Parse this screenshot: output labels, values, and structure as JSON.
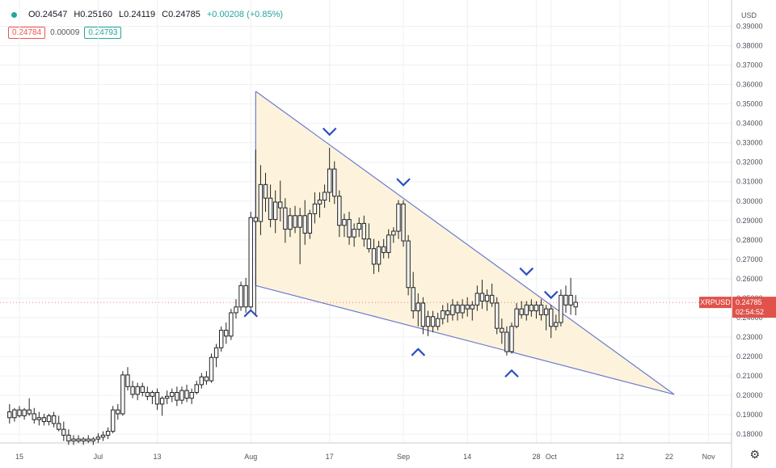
{
  "header": {
    "open": "O0.24547",
    "high": "H0.25160",
    "low": "L0.24119",
    "close": "C0.24785",
    "change": "+0.00208 (+0.85%)",
    "bid": "0.24784",
    "spread": "0.00009",
    "ask": "0.24793"
  },
  "current": {
    "symbol": "XRPUSD",
    "price": "0.24785",
    "countdown": "02:54:52",
    "value": 0.24785
  },
  "colors": {
    "up": "#ffffff",
    "down": "#ffffff",
    "wick": "#222222",
    "pattern_line": "#6a7bd0",
    "pattern_fill": "#fdf3dc",
    "marker": "#2b4fc0",
    "label_bg": "#e0524a"
  },
  "chart_data": {
    "type": "candlestick",
    "y_axis": {
      "currency": "USD",
      "ticks": [
        "0.18000",
        "0.19000",
        "0.20000",
        "0.21000",
        "0.22000",
        "0.23000",
        "0.24000",
        "0.25000",
        "0.26000",
        "0.27000",
        "0.28000",
        "0.29000",
        "0.30000",
        "0.31000",
        "0.32000",
        "0.33000",
        "0.34000",
        "0.35000",
        "0.36000",
        "0.37000",
        "0.38000",
        "0.39000"
      ]
    },
    "x_axis": {
      "ticks": [
        {
          "label": "15",
          "day": 0
        },
        {
          "label": "Jul",
          "day": 16
        },
        {
          "label": "13",
          "day": 28
        },
        {
          "label": "Aug",
          "day": 47
        },
        {
          "label": "17",
          "day": 63
        },
        {
          "label": "Sep",
          "day": 78
        },
        {
          "label": "14",
          "day": 91
        },
        {
          "label": "28",
          "day": 105
        },
        {
          "label": "Oct",
          "day": 108
        },
        {
          "label": "12",
          "day": 122
        },
        {
          "label": "22",
          "day": 132
        },
        {
          "label": "Nov",
          "day": 140
        }
      ]
    },
    "candles": [
      {
        "d": -2,
        "o": 0.1915,
        "h": 0.1955,
        "l": 0.1855,
        "c": 0.1885
      },
      {
        "d": -1,
        "o": 0.1885,
        "h": 0.1935,
        "l": 0.1865,
        "c": 0.1925
      },
      {
        "d": 0,
        "o": 0.1925,
        "h": 0.1945,
        "l": 0.1885,
        "c": 0.1895
      },
      {
        "d": 1,
        "o": 0.1895,
        "h": 0.1935,
        "l": 0.1875,
        "c": 0.1925
      },
      {
        "d": 2,
        "o": 0.1925,
        "h": 0.1985,
        "l": 0.1895,
        "c": 0.1905
      },
      {
        "d": 3,
        "o": 0.1905,
        "h": 0.1935,
        "l": 0.1855,
        "c": 0.1875
      },
      {
        "d": 4,
        "o": 0.1875,
        "h": 0.1915,
        "l": 0.1845,
        "c": 0.1885
      },
      {
        "d": 5,
        "o": 0.1885,
        "h": 0.1905,
        "l": 0.1845,
        "c": 0.1865
      },
      {
        "d": 6,
        "o": 0.1865,
        "h": 0.1905,
        "l": 0.1845,
        "c": 0.1895
      },
      {
        "d": 7,
        "o": 0.1895,
        "h": 0.1915,
        "l": 0.1835,
        "c": 0.1855
      },
      {
        "d": 8,
        "o": 0.1855,
        "h": 0.1895,
        "l": 0.1815,
        "c": 0.1825
      },
      {
        "d": 9,
        "o": 0.1825,
        "h": 0.1865,
        "l": 0.1765,
        "c": 0.1795
      },
      {
        "d": 10,
        "o": 0.1795,
        "h": 0.1825,
        "l": 0.1745,
        "c": 0.1765
      },
      {
        "d": 11,
        "o": 0.1765,
        "h": 0.1795,
        "l": 0.1745,
        "c": 0.1775
      },
      {
        "d": 12,
        "o": 0.1775,
        "h": 0.1795,
        "l": 0.1755,
        "c": 0.1765
      },
      {
        "d": 13,
        "o": 0.1765,
        "h": 0.1785,
        "l": 0.1745,
        "c": 0.1775
      },
      {
        "d": 14,
        "o": 0.1775,
        "h": 0.1795,
        "l": 0.1755,
        "c": 0.1765
      },
      {
        "d": 15,
        "o": 0.1765,
        "h": 0.1785,
        "l": 0.1745,
        "c": 0.1775
      },
      {
        "d": 16,
        "o": 0.1775,
        "h": 0.1805,
        "l": 0.1755,
        "c": 0.1785
      },
      {
        "d": 17,
        "o": 0.1785,
        "h": 0.1815,
        "l": 0.1765,
        "c": 0.1795
      },
      {
        "d": 18,
        "o": 0.1795,
        "h": 0.1835,
        "l": 0.1775,
        "c": 0.1815
      },
      {
        "d": 19,
        "o": 0.1815,
        "h": 0.1945,
        "l": 0.1805,
        "c": 0.1925
      },
      {
        "d": 20,
        "o": 0.1925,
        "h": 0.1955,
        "l": 0.1875,
        "c": 0.1905
      },
      {
        "d": 21,
        "o": 0.1905,
        "h": 0.2125,
        "l": 0.1895,
        "c": 0.2105
      },
      {
        "d": 22,
        "o": 0.2105,
        "h": 0.2145,
        "l": 0.2025,
        "c": 0.2045
      },
      {
        "d": 23,
        "o": 0.2045,
        "h": 0.2075,
        "l": 0.1985,
        "c": 0.2005
      },
      {
        "d": 24,
        "o": 0.2005,
        "h": 0.2065,
        "l": 0.1975,
        "c": 0.2045
      },
      {
        "d": 25,
        "o": 0.2045,
        "h": 0.2065,
        "l": 0.1995,
        "c": 0.2015
      },
      {
        "d": 26,
        "o": 0.2015,
        "h": 0.2045,
        "l": 0.1975,
        "c": 0.1995
      },
      {
        "d": 27,
        "o": 0.1995,
        "h": 0.2025,
        "l": 0.1955,
        "c": 0.2015
      },
      {
        "d": 28,
        "o": 0.2015,
        "h": 0.2035,
        "l": 0.1925,
        "c": 0.1955
      },
      {
        "d": 29,
        "o": 0.1955,
        "h": 0.1995,
        "l": 0.1895,
        "c": 0.1985
      },
      {
        "d": 30,
        "o": 0.1985,
        "h": 0.2025,
        "l": 0.1955,
        "c": 0.1995
      },
      {
        "d": 31,
        "o": 0.1995,
        "h": 0.2035,
        "l": 0.1965,
        "c": 0.2015
      },
      {
        "d": 32,
        "o": 0.2015,
        "h": 0.2045,
        "l": 0.1945,
        "c": 0.1975
      },
      {
        "d": 33,
        "o": 0.1975,
        "h": 0.2045,
        "l": 0.1955,
        "c": 0.2025
      },
      {
        "d": 34,
        "o": 0.2025,
        "h": 0.2055,
        "l": 0.1965,
        "c": 0.1985
      },
      {
        "d": 35,
        "o": 0.1985,
        "h": 0.2035,
        "l": 0.1955,
        "c": 0.2015
      },
      {
        "d": 36,
        "o": 0.2015,
        "h": 0.2075,
        "l": 0.2005,
        "c": 0.2055
      },
      {
        "d": 37,
        "o": 0.2055,
        "h": 0.2115,
        "l": 0.2035,
        "c": 0.2095
      },
      {
        "d": 38,
        "o": 0.2095,
        "h": 0.2125,
        "l": 0.2055,
        "c": 0.2075
      },
      {
        "d": 39,
        "o": 0.2075,
        "h": 0.2215,
        "l": 0.2065,
        "c": 0.2195
      },
      {
        "d": 40,
        "o": 0.2195,
        "h": 0.2265,
        "l": 0.2145,
        "c": 0.2245
      },
      {
        "d": 41,
        "o": 0.2245,
        "h": 0.2355,
        "l": 0.2225,
        "c": 0.2335
      },
      {
        "d": 42,
        "o": 0.2335,
        "h": 0.2375,
        "l": 0.2265,
        "c": 0.2305
      },
      {
        "d": 43,
        "o": 0.2305,
        "h": 0.2445,
        "l": 0.2285,
        "c": 0.2425
      },
      {
        "d": 44,
        "o": 0.2425,
        "h": 0.2495,
        "l": 0.2395,
        "c": 0.2455
      },
      {
        "d": 45,
        "o": 0.2455,
        "h": 0.2585,
        "l": 0.2435,
        "c": 0.2565
      },
      {
        "d": 46,
        "o": 0.2565,
        "h": 0.2605,
        "l": 0.2425,
        "c": 0.2455
      },
      {
        "d": 47,
        "o": 0.2455,
        "h": 0.2945,
        "l": 0.2445,
        "c": 0.2915
      },
      {
        "d": 48,
        "o": 0.2915,
        "h": 0.3265,
        "l": 0.2415,
        "c": 0.2895
      },
      {
        "d": 49,
        "o": 0.2895,
        "h": 0.3185,
        "l": 0.2825,
        "c": 0.3085
      },
      {
        "d": 50,
        "o": 0.3085,
        "h": 0.3145,
        "l": 0.2945,
        "c": 0.3015
      },
      {
        "d": 51,
        "o": 0.3015,
        "h": 0.3085,
        "l": 0.2865,
        "c": 0.2905
      },
      {
        "d": 52,
        "o": 0.2905,
        "h": 0.3055,
        "l": 0.2835,
        "c": 0.2995
      },
      {
        "d": 53,
        "o": 0.2995,
        "h": 0.3105,
        "l": 0.2895,
        "c": 0.2965
      },
      {
        "d": 54,
        "o": 0.2965,
        "h": 0.3015,
        "l": 0.2785,
        "c": 0.2855
      },
      {
        "d": 55,
        "o": 0.2855,
        "h": 0.2965,
        "l": 0.2815,
        "c": 0.2925
      },
      {
        "d": 56,
        "o": 0.2925,
        "h": 0.2975,
        "l": 0.2835,
        "c": 0.2865
      },
      {
        "d": 57,
        "o": 0.2865,
        "h": 0.2965,
        "l": 0.2675,
        "c": 0.2925
      },
      {
        "d": 58,
        "o": 0.2925,
        "h": 0.3005,
        "l": 0.2775,
        "c": 0.2835
      },
      {
        "d": 59,
        "o": 0.2835,
        "h": 0.2955,
        "l": 0.2805,
        "c": 0.2935
      },
      {
        "d": 60,
        "o": 0.2935,
        "h": 0.3045,
        "l": 0.2885,
        "c": 0.2985
      },
      {
        "d": 61,
        "o": 0.2985,
        "h": 0.3045,
        "l": 0.2915,
        "c": 0.3005
      },
      {
        "d": 62,
        "o": 0.3005,
        "h": 0.3085,
        "l": 0.2965,
        "c": 0.3045
      },
      {
        "d": 63,
        "o": 0.3045,
        "h": 0.3275,
        "l": 0.2995,
        "c": 0.3165
      },
      {
        "d": 64,
        "o": 0.3165,
        "h": 0.3205,
        "l": 0.2985,
        "c": 0.3025
      },
      {
        "d": 65,
        "o": 0.3025,
        "h": 0.3055,
        "l": 0.2815,
        "c": 0.2875
      },
      {
        "d": 66,
        "o": 0.2875,
        "h": 0.2935,
        "l": 0.2815,
        "c": 0.2905
      },
      {
        "d": 67,
        "o": 0.2905,
        "h": 0.2945,
        "l": 0.2775,
        "c": 0.2815
      },
      {
        "d": 68,
        "o": 0.2815,
        "h": 0.2885,
        "l": 0.2765,
        "c": 0.2855
      },
      {
        "d": 69,
        "o": 0.2855,
        "h": 0.2915,
        "l": 0.2815,
        "c": 0.2885
      },
      {
        "d": 70,
        "o": 0.2885,
        "h": 0.2925,
        "l": 0.2765,
        "c": 0.2805
      },
      {
        "d": 71,
        "o": 0.2805,
        "h": 0.2885,
        "l": 0.2735,
        "c": 0.2755
      },
      {
        "d": 72,
        "o": 0.2755,
        "h": 0.2805,
        "l": 0.2625,
        "c": 0.2675
      },
      {
        "d": 73,
        "o": 0.2675,
        "h": 0.2795,
        "l": 0.2635,
        "c": 0.2765
      },
      {
        "d": 74,
        "o": 0.2765,
        "h": 0.2805,
        "l": 0.2705,
        "c": 0.2735
      },
      {
        "d": 75,
        "o": 0.2735,
        "h": 0.2855,
        "l": 0.2705,
        "c": 0.2825
      },
      {
        "d": 76,
        "o": 0.2825,
        "h": 0.2865,
        "l": 0.2785,
        "c": 0.2845
      },
      {
        "d": 77,
        "o": 0.2845,
        "h": 0.3005,
        "l": 0.2805,
        "c": 0.2985
      },
      {
        "d": 78,
        "o": 0.2985,
        "h": 0.3005,
        "l": 0.2765,
        "c": 0.2795
      },
      {
        "d": 79,
        "o": 0.2795,
        "h": 0.2825,
        "l": 0.2515,
        "c": 0.2555
      },
      {
        "d": 80,
        "o": 0.2555,
        "h": 0.2635,
        "l": 0.2395,
        "c": 0.2435
      },
      {
        "d": 81,
        "o": 0.2435,
        "h": 0.2525,
        "l": 0.2355,
        "c": 0.2475
      },
      {
        "d": 82,
        "o": 0.2475,
        "h": 0.2505,
        "l": 0.2315,
        "c": 0.2355
      },
      {
        "d": 83,
        "o": 0.2355,
        "h": 0.2435,
        "l": 0.2305,
        "c": 0.2405
      },
      {
        "d": 84,
        "o": 0.2405,
        "h": 0.2435,
        "l": 0.2325,
        "c": 0.2355
      },
      {
        "d": 85,
        "o": 0.2355,
        "h": 0.2425,
        "l": 0.2335,
        "c": 0.2395
      },
      {
        "d": 86,
        "o": 0.2395,
        "h": 0.2465,
        "l": 0.2365,
        "c": 0.2435
      },
      {
        "d": 87,
        "o": 0.2435,
        "h": 0.2475,
        "l": 0.2375,
        "c": 0.2415
      },
      {
        "d": 88,
        "o": 0.2415,
        "h": 0.2495,
        "l": 0.2385,
        "c": 0.2465
      },
      {
        "d": 89,
        "o": 0.2465,
        "h": 0.2485,
        "l": 0.2385,
        "c": 0.2425
      },
      {
        "d": 90,
        "o": 0.2425,
        "h": 0.2495,
        "l": 0.2395,
        "c": 0.2465
      },
      {
        "d": 91,
        "o": 0.2465,
        "h": 0.2505,
        "l": 0.2405,
        "c": 0.2445
      },
      {
        "d": 92,
        "o": 0.2445,
        "h": 0.2485,
        "l": 0.2385,
        "c": 0.2465
      },
      {
        "d": 93,
        "o": 0.2465,
        "h": 0.2565,
        "l": 0.2435,
        "c": 0.2525
      },
      {
        "d": 94,
        "o": 0.2525,
        "h": 0.2595,
        "l": 0.2445,
        "c": 0.2485
      },
      {
        "d": 95,
        "o": 0.2485,
        "h": 0.2545,
        "l": 0.2435,
        "c": 0.2515
      },
      {
        "d": 96,
        "o": 0.2515,
        "h": 0.2575,
        "l": 0.2455,
        "c": 0.2475
      },
      {
        "d": 97,
        "o": 0.2475,
        "h": 0.2505,
        "l": 0.2315,
        "c": 0.2345
      },
      {
        "d": 98,
        "o": 0.2345,
        "h": 0.2395,
        "l": 0.2265,
        "c": 0.2325
      },
      {
        "d": 99,
        "o": 0.2325,
        "h": 0.2355,
        "l": 0.2205,
        "c": 0.2225
      },
      {
        "d": 100,
        "o": 0.2225,
        "h": 0.2375,
        "l": 0.2215,
        "c": 0.2355
      },
      {
        "d": 101,
        "o": 0.2355,
        "h": 0.2475,
        "l": 0.2345,
        "c": 0.2445
      },
      {
        "d": 102,
        "o": 0.2445,
        "h": 0.2485,
        "l": 0.2395,
        "c": 0.2415
      },
      {
        "d": 103,
        "o": 0.2415,
        "h": 0.2485,
        "l": 0.2385,
        "c": 0.2465
      },
      {
        "d": 104,
        "o": 0.2465,
        "h": 0.2495,
        "l": 0.2405,
        "c": 0.2435
      },
      {
        "d": 105,
        "o": 0.2435,
        "h": 0.2485,
        "l": 0.2395,
        "c": 0.2465
      },
      {
        "d": 106,
        "o": 0.2465,
        "h": 0.2495,
        "l": 0.2385,
        "c": 0.2415
      },
      {
        "d": 107,
        "o": 0.2415,
        "h": 0.2465,
        "l": 0.2335,
        "c": 0.2445
      },
      {
        "d": 108,
        "o": 0.2445,
        "h": 0.2465,
        "l": 0.2295,
        "c": 0.2355
      },
      {
        "d": 109,
        "o": 0.2355,
        "h": 0.2415,
        "l": 0.2335,
        "c": 0.2375
      },
      {
        "d": 110,
        "o": 0.2375,
        "h": 0.2545,
        "l": 0.2355,
        "c": 0.2515
      },
      {
        "d": 111,
        "o": 0.2515,
        "h": 0.2565,
        "l": 0.2425,
        "c": 0.2465
      },
      {
        "d": 112,
        "o": 0.2465,
        "h": 0.2605,
        "l": 0.2415,
        "c": 0.2515
      },
      {
        "d": 113,
        "o": 0.2455,
        "h": 0.2516,
        "l": 0.2412,
        "c": 0.2479
      }
    ],
    "pattern": {
      "type": "falling-wedge",
      "upper_line": [
        {
          "d": 48,
          "p": 0.3565
        },
        {
          "d": 133,
          "p": 0.2005
        }
      ],
      "lower_line": [
        {
          "d": 48,
          "p": 0.2565
        },
        {
          "d": 133,
          "p": 0.2005
        }
      ],
      "tops": [
        {
          "d": 63,
          "p": 0.3325
        },
        {
          "d": 78,
          "p": 0.3065
        },
        {
          "d": 103,
          "p": 0.2605
        },
        {
          "d": 108,
          "p": 0.2485
        }
      ],
      "bottoms": [
        {
          "d": 47,
          "p": 0.2455
        },
        {
          "d": 81,
          "p": 0.2255
        },
        {
          "d": 100,
          "p": 0.2145
        }
      ]
    },
    "ylim": [
      0.1755,
      0.4035
    ]
  }
}
